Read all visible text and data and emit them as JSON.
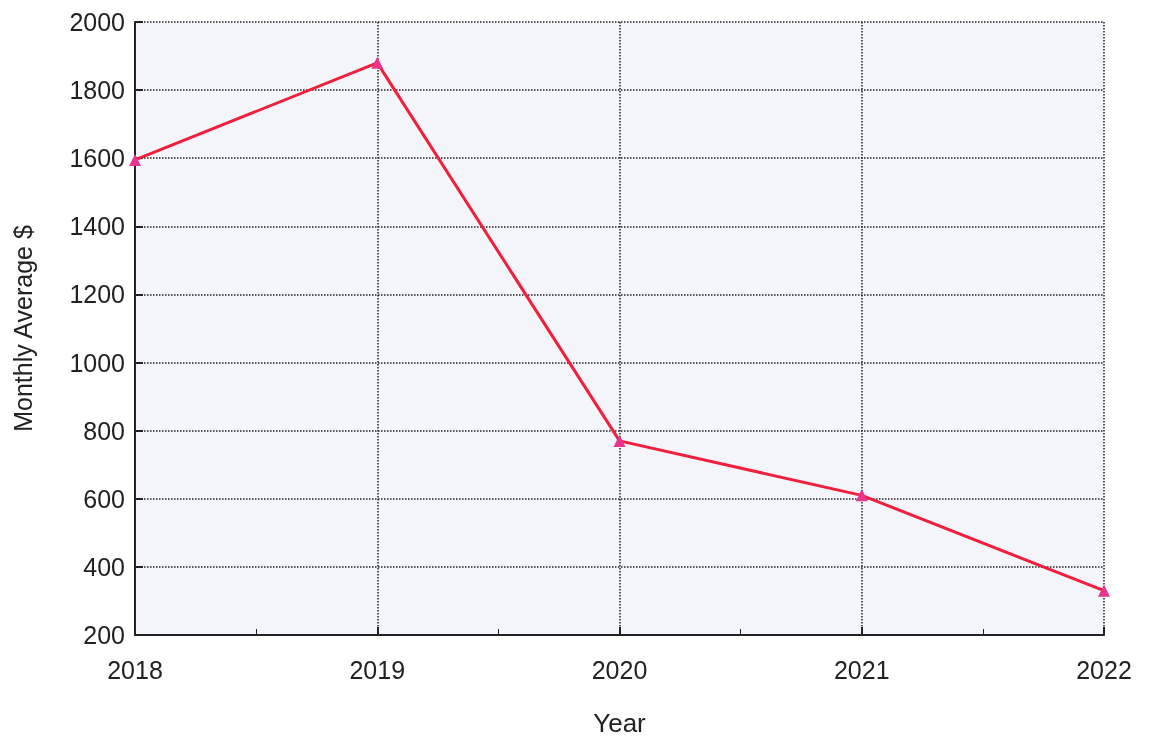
{
  "chart_data": {
    "type": "line",
    "xlabel": "Year",
    "ylabel": "Monthly Average $",
    "x": [
      2018,
      2019,
      2020,
      2021,
      2022
    ],
    "series": [
      {
        "color": "#f0203c",
        "values": [
          1595,
          1880,
          770,
          610,
          330
        ]
      }
    ],
    "xlim": [
      2018,
      2022
    ],
    "xticks": [
      2018,
      2019,
      2020,
      2021,
      2022
    ],
    "ylim": [
      200,
      2000
    ],
    "yticks": [
      200,
      400,
      600,
      800,
      1000,
      1200,
      1400,
      1600,
      1800,
      2000
    ],
    "grid": true,
    "marker": "triangle",
    "line_style": "solid"
  }
}
